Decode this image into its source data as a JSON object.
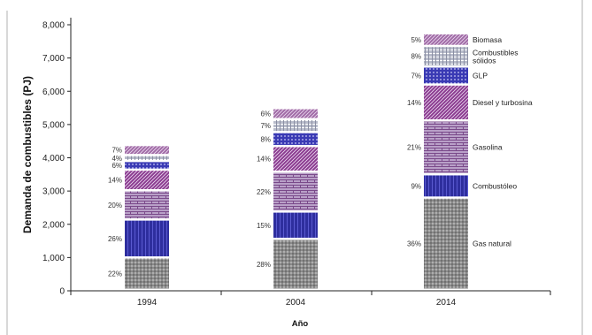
{
  "chart_data": {
    "type": "bar",
    "stacked": true,
    "title": "",
    "xlabel": "Año",
    "ylabel": "Demanda de combustibles (PJ)",
    "ylim": [
      0,
      8000
    ],
    "yticks": [
      "0",
      "1,000",
      "2,000",
      "3,000",
      "4,000",
      "5,000",
      "6,000",
      "7,000",
      "8,000"
    ],
    "categories": [
      "1994",
      "2004",
      "2014"
    ],
    "series": [
      {
        "name": "Gas natural",
        "color": "#8a8a8a",
        "values": [
          970,
          1530,
          2770
        ],
        "pct_labels": [
          "22%",
          "28%",
          "36%"
        ]
      },
      {
        "name": "Combustóleo",
        "color": "#2e2e9e",
        "values": [
          1140,
          820,
          700
        ],
        "pct_labels": [
          "26%",
          "15%",
          "9%"
        ]
      },
      {
        "name": "Gasolina",
        "color": "#b9a0c8",
        "values": [
          880,
          1200,
          1620
        ],
        "pct_labels": [
          "20%",
          "22%",
          "21%"
        ]
      },
      {
        "name": "Diesel y turbosina",
        "color": "#8a3a8f",
        "values": [
          620,
          770,
          1080
        ],
        "pct_labels": [
          "14%",
          "14%",
          "14%"
        ]
      },
      {
        "name": "GLP",
        "color": "#3a3ab4",
        "values": [
          260,
          420,
          540
        ],
        "pct_labels": [
          "6%",
          "8%",
          "7%"
        ]
      },
      {
        "name": "Combustibles sólidos",
        "color": "#b8bccb",
        "values": [
          180,
          390,
          620
        ],
        "pct_labels": [
          "4%",
          "7%",
          "8%"
        ]
      },
      {
        "name": "Biomasa",
        "color": "#a06aa5",
        "values": [
          300,
          330,
          380
        ],
        "pct_labels": [
          "7%",
          "6%",
          "5%"
        ]
      }
    ],
    "segment_labels": [
      "Gas natural",
      "Combustóleo",
      "Gasolina",
      "Diesel y turbosina",
      "GLP",
      "Combustibles sólidos",
      "Biomasa"
    ],
    "grid": false,
    "legend": "none"
  }
}
